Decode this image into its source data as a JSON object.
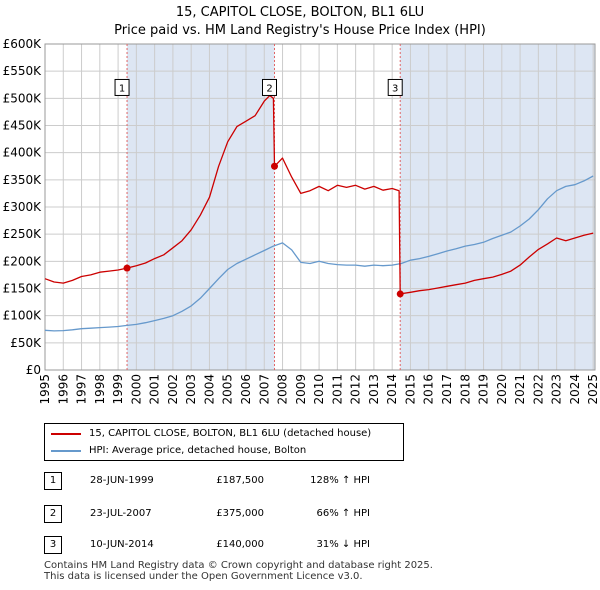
{
  "title_line1": "15, CAPITOL CLOSE, BOLTON, BL1 6LU",
  "title_line2": "Price paid vs. HM Land Registry's House Price Index (HPI)",
  "chart_data": {
    "type": "line",
    "ylim": [
      0,
      600000
    ],
    "xlim": [
      1995,
      2025.1
    ],
    "y_ticks": [
      0,
      50000,
      100000,
      150000,
      200000,
      250000,
      300000,
      350000,
      400000,
      450000,
      500000,
      550000,
      600000
    ],
    "y_tick_labels": [
      "£0",
      "£50K",
      "£100K",
      "£150K",
      "£200K",
      "£250K",
      "£300K",
      "£350K",
      "£400K",
      "£450K",
      "£500K",
      "£550K",
      "£600K"
    ],
    "x_ticks": [
      1995,
      1996,
      1997,
      1998,
      1999,
      2000,
      2001,
      2002,
      2003,
      2004,
      2005,
      2006,
      2007,
      2008,
      2009,
      2010,
      2011,
      2012,
      2013,
      2014,
      2015,
      2016,
      2017,
      2018,
      2019,
      2020,
      2021,
      2022,
      2023,
      2024,
      2025
    ],
    "x_tick_labels": [
      "1995",
      "1996",
      "1997",
      "1998",
      "1999",
      "2000",
      "2001",
      "2002",
      "2003",
      "2004",
      "2005",
      "2006",
      "2007",
      "2008",
      "2009",
      "2010",
      "2011",
      "2012",
      "2013",
      "2014",
      "2015",
      "2016",
      "2017",
      "2018",
      "2019",
      "2020",
      "2021",
      "2022",
      "2023",
      "2024",
      "2025"
    ],
    "grid": true,
    "colors": {
      "red": "#cc0000",
      "blue": "#6699cc",
      "band": "#dde6f3",
      "grid": "#cccccc",
      "dashed": "#e06666"
    },
    "shaded_ranges": [
      [
        1999.49,
        2007.56
      ],
      [
        2014.44,
        2025.1
      ]
    ],
    "series": [
      {
        "name": "15, CAPITOL CLOSE, BOLTON, BL1 6LU (detached house)",
        "color": "#cc0000",
        "x": [
          1995.0,
          1995.5,
          1996.0,
          1996.5,
          1997.0,
          1997.5,
          1998.0,
          1998.5,
          1999.0,
          1999.49,
          2000.0,
          2000.5,
          2001.0,
          2001.5,
          2002.0,
          2002.5,
          2003.0,
          2003.5,
          2004.0,
          2004.5,
          2005.0,
          2005.5,
          2006.0,
          2006.5,
          2007.0,
          2007.3,
          2007.5,
          2007.56,
          2008.0,
          2008.5,
          2009.0,
          2009.5,
          2010.0,
          2010.5,
          2011.0,
          2011.5,
          2012.0,
          2012.5,
          2013.0,
          2013.5,
          2014.0,
          2014.38,
          2014.44,
          2015.0,
          2015.5,
          2016.0,
          2016.5,
          2017.0,
          2017.5,
          2018.0,
          2018.5,
          2019.0,
          2019.5,
          2020.0,
          2020.5,
          2021.0,
          2021.5,
          2022.0,
          2022.5,
          2023.0,
          2023.5,
          2024.0,
          2024.5,
          2025.0
        ],
        "values": [
          168000,
          162000,
          160000,
          165000,
          172000,
          175000,
          180000,
          182000,
          184000,
          187500,
          192000,
          197000,
          205000,
          212000,
          225000,
          238000,
          258000,
          285000,
          318000,
          375000,
          420000,
          448000,
          458000,
          468000,
          495000,
          505000,
          500000,
          375000,
          390000,
          355000,
          325000,
          330000,
          338000,
          330000,
          340000,
          336000,
          340000,
          333000,
          338000,
          331000,
          334000,
          330000,
          140000,
          143000,
          146000,
          148000,
          151000,
          154000,
          157000,
          160000,
          165000,
          168000,
          171000,
          176000,
          182000,
          193000,
          208000,
          222000,
          232000,
          243000,
          238000,
          243000,
          248000,
          252000
        ]
      },
      {
        "name": "HPI: Average price, detached house, Bolton",
        "color": "#6699cc",
        "x": [
          1995.0,
          1995.5,
          1996.0,
          1996.5,
          1997.0,
          1997.5,
          1998.0,
          1998.5,
          1999.0,
          1999.5,
          2000.0,
          2000.5,
          2001.0,
          2001.5,
          2002.0,
          2002.5,
          2003.0,
          2003.5,
          2004.0,
          2004.5,
          2005.0,
          2005.5,
          2006.0,
          2006.5,
          2007.0,
          2007.5,
          2008.0,
          2008.5,
          2009.0,
          2009.5,
          2010.0,
          2010.5,
          2011.0,
          2011.5,
          2012.0,
          2012.5,
          2013.0,
          2013.5,
          2014.0,
          2014.5,
          2015.0,
          2015.5,
          2016.0,
          2016.5,
          2017.0,
          2017.5,
          2018.0,
          2018.5,
          2019.0,
          2019.5,
          2020.0,
          2020.5,
          2021.0,
          2021.5,
          2022.0,
          2022.5,
          2023.0,
          2023.5,
          2024.0,
          2024.5,
          2025.0
        ],
        "values": [
          73000,
          72000,
          72500,
          74000,
          76000,
          77000,
          78000,
          79000,
          80000,
          82000,
          84000,
          87000,
          91000,
          95000,
          100000,
          108000,
          118000,
          132000,
          150000,
          168000,
          185000,
          196000,
          204000,
          212000,
          220000,
          228000,
          234000,
          221000,
          198000,
          196000,
          200000,
          196000,
          194000,
          193000,
          193000,
          191000,
          193000,
          192000,
          193000,
          196000,
          202000,
          205000,
          209000,
          214000,
          219000,
          223000,
          228000,
          231000,
          235000,
          242000,
          248000,
          254000,
          265000,
          278000,
          295000,
          315000,
          330000,
          338000,
          341000,
          348000,
          357000
        ]
      }
    ],
    "sales": [
      {
        "label": "1",
        "x": 1999.49,
        "value": 187500
      },
      {
        "label": "2",
        "x": 2007.56,
        "value": 375000
      },
      {
        "label": "3",
        "x": 2014.44,
        "value": 140000
      }
    ],
    "marker_label_value": 520000
  },
  "legend": {
    "red_label": "15, CAPITOL CLOSE, BOLTON, BL1 6LU (detached house)",
    "blue_label": "HPI: Average price, detached house, Bolton"
  },
  "table": [
    {
      "num": "1",
      "date": "28-JUN-1999",
      "price": "£187,500",
      "hpi": "128% ↑ HPI"
    },
    {
      "num": "2",
      "date": "23-JUL-2007",
      "price": "£375,000",
      "hpi": "66% ↑ HPI"
    },
    {
      "num": "3",
      "date": "10-JUN-2014",
      "price": "£140,000",
      "hpi": "31% ↓ HPI"
    }
  ],
  "footer_line1": "Contains HM Land Registry data © Crown copyright and database right 2025.",
  "footer_line2": "This data is licensed under the Open Government Licence v3.0."
}
